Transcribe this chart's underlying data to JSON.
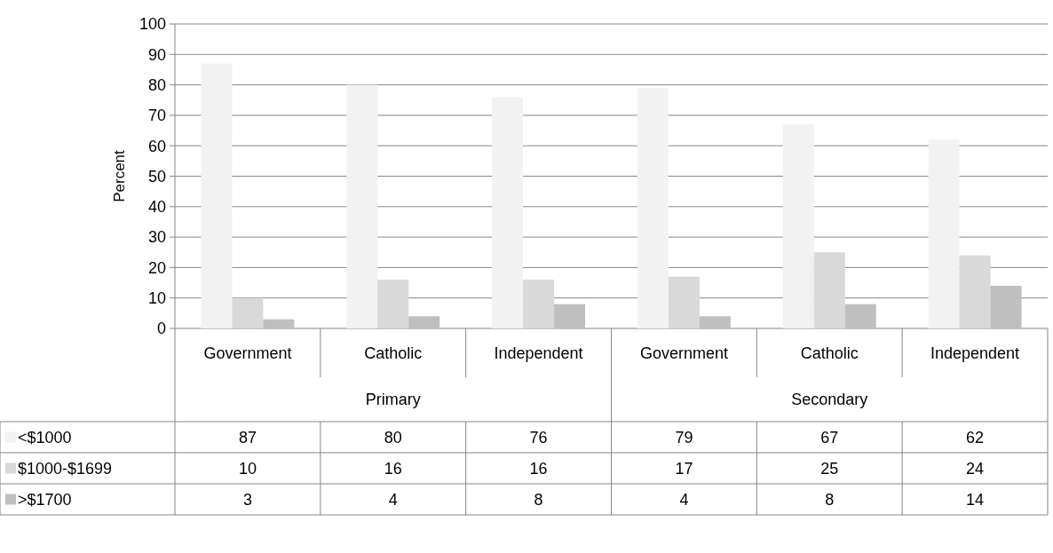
{
  "chart_data": {
    "type": "bar",
    "ylabel": "Percent",
    "categories": [
      "Government",
      "Catholic",
      "Independent",
      "Government",
      "Catholic",
      "Independent"
    ],
    "annotations": [
      "Primary",
      "Secondary"
    ],
    "series": [
      {
        "name": "<$1000",
        "color": "#f2f2f2",
        "values": [
          87,
          80,
          76,
          79,
          67,
          62
        ]
      },
      {
        "name": "$1000-$1699",
        "color": "#d9d9d9",
        "values": [
          10,
          16,
          16,
          17,
          25,
          24
        ]
      },
      {
        "name": ">$1700",
        "color": "#bfbfbf",
        "values": [
          3,
          4,
          8,
          4,
          8,
          14
        ]
      }
    ],
    "ylim": [
      0,
      100
    ],
    "yticks": [
      0,
      10,
      20,
      30,
      40,
      50,
      60,
      70,
      80,
      90,
      100
    ],
    "grid": "y",
    "legend": "bottom",
    "data_labels": true
  }
}
